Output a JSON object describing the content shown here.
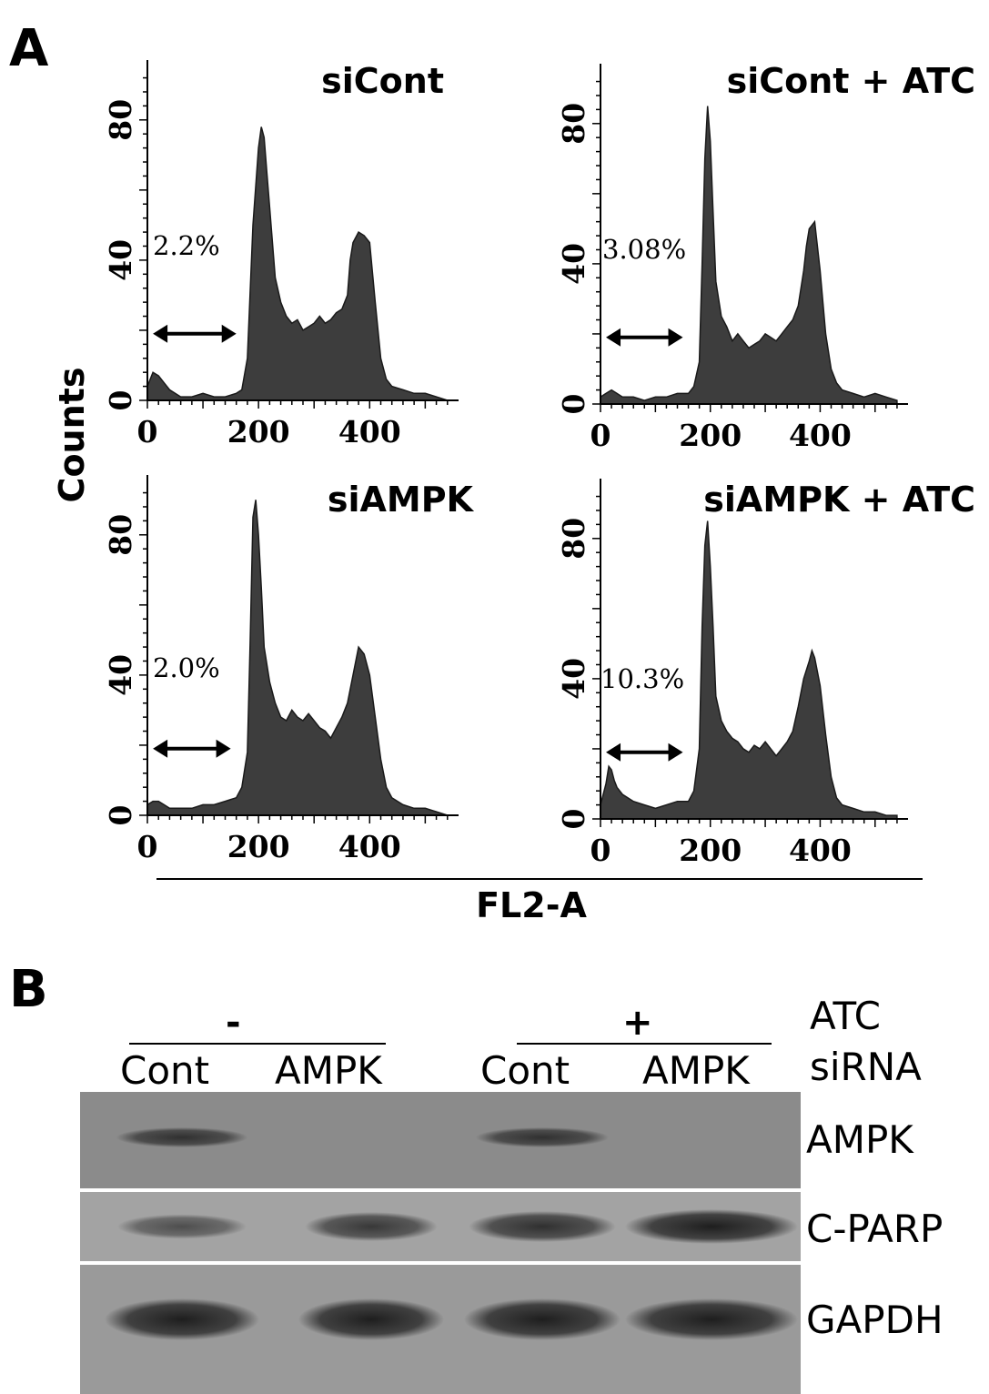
{
  "panel_a": {
    "label": "A",
    "ylabel": "Counts",
    "xlabel": "FL2-A",
    "chart_data": [
      {
        "type": "area",
        "title": "siCont",
        "xlim": [
          0,
          560
        ],
        "ylim": [
          0,
          95
        ],
        "xticks": [
          0,
          200,
          400
        ],
        "yticks": [
          0,
          40,
          80
        ],
        "annotation": "2.2%",
        "gate": [
          10,
          160
        ],
        "x": [
          0,
          10,
          20,
          30,
          40,
          50,
          60,
          80,
          100,
          120,
          140,
          160,
          170,
          180,
          190,
          200,
          205,
          210,
          215,
          220,
          230,
          240,
          250,
          260,
          270,
          280,
          290,
          300,
          310,
          320,
          330,
          340,
          350,
          360,
          365,
          370,
          380,
          390,
          400,
          410,
          420,
          430,
          440,
          460,
          480,
          500,
          520,
          540
        ],
        "values": [
          4,
          8,
          7,
          5,
          3,
          2,
          1,
          1,
          2,
          1,
          1,
          2,
          3,
          12,
          50,
          72,
          78,
          75,
          65,
          55,
          35,
          28,
          24,
          22,
          23,
          20,
          21,
          22,
          24,
          22,
          23,
          25,
          26,
          30,
          40,
          45,
          48,
          47,
          45,
          28,
          12,
          6,
          4,
          3,
          2,
          2,
          1,
          0
        ]
      },
      {
        "type": "area",
        "title": "siCont + ATC",
        "xlim": [
          0,
          560
        ],
        "ylim": [
          0,
          95
        ],
        "xticks": [
          0,
          200,
          400
        ],
        "yticks": [
          0,
          40,
          80
        ],
        "annotation": "3.08%",
        "gate": [
          10,
          150
        ],
        "x": [
          0,
          10,
          20,
          30,
          40,
          60,
          80,
          100,
          120,
          140,
          160,
          170,
          180,
          185,
          190,
          195,
          200,
          205,
          210,
          220,
          230,
          240,
          250,
          260,
          270,
          280,
          290,
          300,
          310,
          320,
          330,
          340,
          350,
          360,
          370,
          375,
          380,
          390,
          400,
          410,
          420,
          430,
          440,
          460,
          480,
          500,
          520,
          540
        ],
        "values": [
          2,
          3,
          4,
          3,
          2,
          2,
          1,
          2,
          2,
          3,
          3,
          5,
          12,
          40,
          70,
          85,
          75,
          55,
          35,
          25,
          22,
          18,
          20,
          18,
          16,
          17,
          18,
          20,
          19,
          18,
          20,
          22,
          24,
          28,
          38,
          45,
          50,
          52,
          38,
          20,
          10,
          6,
          4,
          3,
          2,
          3,
          2,
          1
        ]
      },
      {
        "type": "area",
        "title": "siAMPK",
        "xlim": [
          0,
          560
        ],
        "ylim": [
          0,
          95
        ],
        "xticks": [
          0,
          200,
          400
        ],
        "yticks": [
          0,
          40,
          80
        ],
        "annotation": "2.0%",
        "gate": [
          10,
          150
        ],
        "x": [
          0,
          10,
          20,
          30,
          40,
          60,
          80,
          100,
          120,
          140,
          160,
          170,
          180,
          185,
          190,
          195,
          200,
          205,
          210,
          220,
          230,
          240,
          250,
          260,
          270,
          280,
          290,
          300,
          310,
          320,
          330,
          340,
          350,
          360,
          370,
          380,
          390,
          400,
          410,
          420,
          430,
          440,
          460,
          480,
          500,
          520,
          540
        ],
        "values": [
          3,
          4,
          4,
          3,
          2,
          2,
          2,
          3,
          3,
          4,
          5,
          8,
          18,
          50,
          85,
          90,
          80,
          65,
          48,
          38,
          32,
          28,
          27,
          30,
          28,
          27,
          29,
          27,
          25,
          24,
          22,
          25,
          28,
          32,
          40,
          48,
          46,
          40,
          28,
          16,
          8,
          5,
          3,
          2,
          2,
          1,
          0
        ]
      },
      {
        "type": "area",
        "title": "siAMPK + ATC",
        "xlim": [
          0,
          560
        ],
        "ylim": [
          0,
          95
        ],
        "xticks": [
          0,
          200,
          400
        ],
        "yticks": [
          0,
          40,
          80
        ],
        "annotation": "10.3%",
        "gate": [
          10,
          150
        ],
        "x": [
          0,
          10,
          15,
          20,
          25,
          30,
          40,
          60,
          80,
          100,
          120,
          140,
          160,
          170,
          180,
          185,
          190,
          195,
          200,
          205,
          210,
          220,
          230,
          240,
          250,
          260,
          270,
          280,
          290,
          300,
          310,
          320,
          330,
          340,
          350,
          360,
          370,
          380,
          385,
          390,
          400,
          410,
          420,
          430,
          440,
          460,
          480,
          500,
          520,
          540
        ],
        "values": [
          4,
          10,
          15,
          14,
          11,
          9,
          7,
          5,
          4,
          3,
          4,
          5,
          5,
          8,
          20,
          55,
          78,
          85,
          72,
          55,
          35,
          28,
          25,
          23,
          22,
          20,
          19,
          21,
          20,
          22,
          20,
          18,
          20,
          22,
          25,
          32,
          40,
          45,
          48,
          46,
          38,
          24,
          12,
          6,
          4,
          3,
          2,
          2,
          1,
          1
        ]
      }
    ]
  },
  "panel_b": {
    "label": "B",
    "atc_label": "ATC",
    "sirna_label": "siRNA",
    "atc_minus": "-",
    "atc_plus": "+",
    "lane_labels": [
      "Cont",
      "AMPK",
      "Cont",
      "AMPK"
    ],
    "blots": [
      {
        "name": "AMPK",
        "background": "#8b8b8b",
        "band_intensities": [
          0.75,
          0,
          0.75,
          0
        ]
      },
      {
        "name": "C-PARP",
        "background": "#a3a3a3",
        "band_intensities": [
          0.45,
          0.7,
          0.8,
          1.0
        ]
      },
      {
        "name": "GAPDH",
        "background": "#9a9a9a",
        "band_intensities": [
          1.0,
          1.0,
          1.0,
          1.0
        ]
      }
    ]
  }
}
